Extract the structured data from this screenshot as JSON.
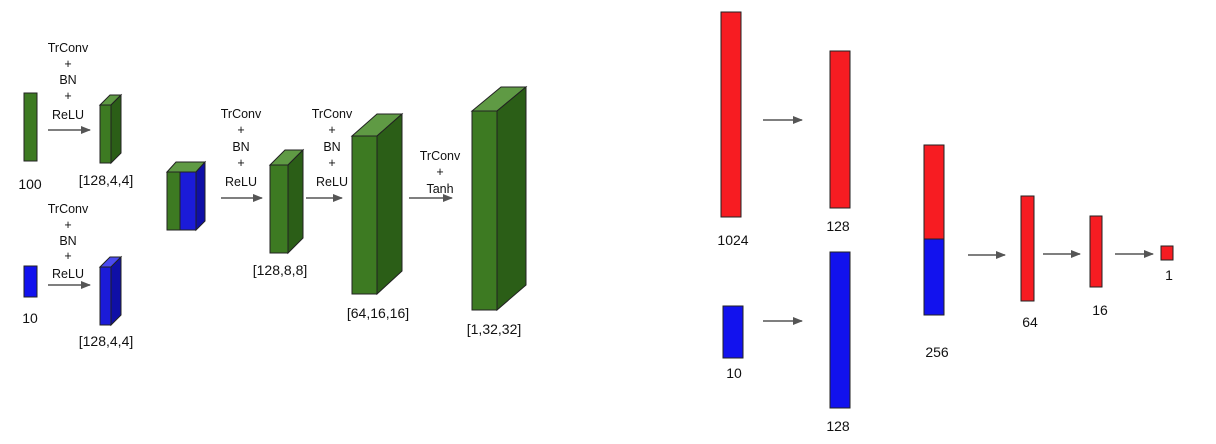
{
  "colors": {
    "green_front": "#3d7a22",
    "green_top": "#5f9a44",
    "green_side": "#2b5e17",
    "blue_front": "#1b1bd8",
    "blue_top": "#4a4af0",
    "blue_side": "#0f0fa6",
    "red": "#f71c22",
    "blue": "#1212ee",
    "arrow": "#555555",
    "outline": "#222222"
  },
  "generator": {
    "noise_label": "100",
    "class_label": "10",
    "op_trconv_bn_relu": [
      "TrConv",
      "+",
      "BN",
      "+",
      "ReLU"
    ],
    "op_trconv_tanh": [
      "TrConv",
      "+",
      "Tanh"
    ],
    "shape_noise_out": "[128,4,4]",
    "shape_class_out": "[128,4,4]",
    "shape_l2": "[128,8,8]",
    "shape_l3": "[64,16,16]",
    "shape_out": "[1,32,32]"
  },
  "discriminator": {
    "image_in": "1024",
    "image_hidden": "128",
    "class_in": "10",
    "class_hidden": "128",
    "concat": "256",
    "h1": "64",
    "h2": "16",
    "out": "1"
  }
}
